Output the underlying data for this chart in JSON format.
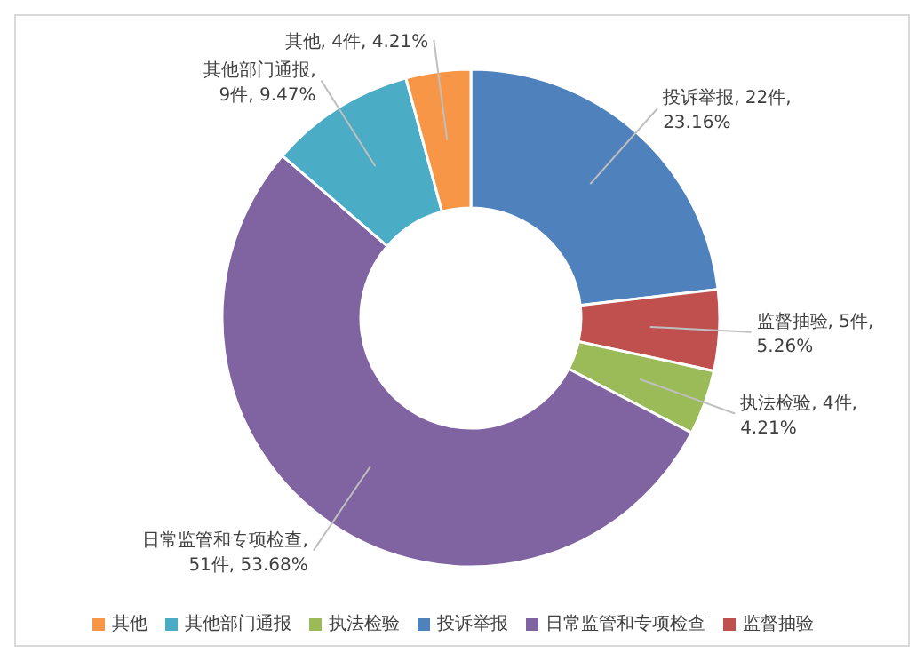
{
  "chart_data": {
    "type": "donut",
    "categories": [
      "投诉举报",
      "监督抽验",
      "执法检验",
      "日常监管和专项检查",
      "其他部门通报",
      "其他"
    ],
    "values": [
      22,
      5,
      4,
      51,
      9,
      4
    ],
    "colors": [
      "#4f81bd",
      "#c0504d",
      "#9bbb59",
      "#8064a2",
      "#4bacc6",
      "#f79646"
    ],
    "value_labels": [
      "投诉举报, 22件, 23.16%",
      "监督抽验, 5件, 5.26%",
      "执法检验, 4件, 4.21%",
      "日常监管和专项检查, 51件, 53.68%",
      "其他部门通报, 9件, 9.47%",
      "其他, 4件, 4.21%"
    ],
    "legend": "bottom"
  }
}
